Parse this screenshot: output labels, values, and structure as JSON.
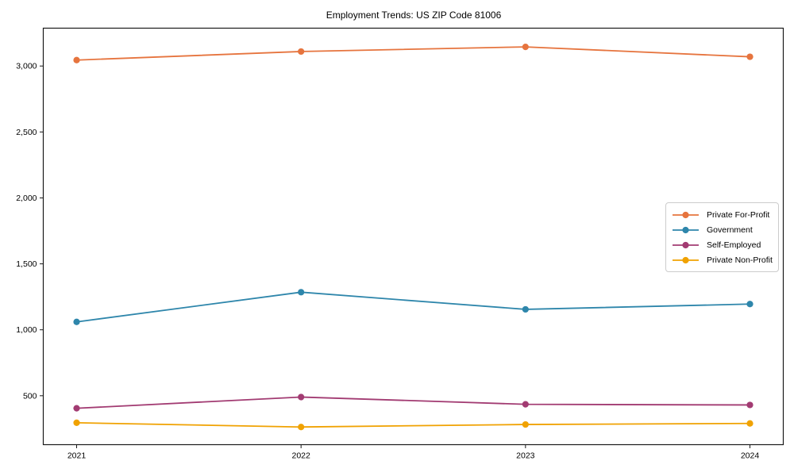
{
  "chart_data": {
    "type": "line",
    "title": "Employment Trends: US ZIP Code 81006",
    "x": [
      2021,
      2022,
      2023,
      2024
    ],
    "x_tick_labels": [
      "2021",
      "2022",
      "2023",
      "2024"
    ],
    "series": [
      {
        "name": "Private For-Profit",
        "color": "#E6743E",
        "values": [
          3045,
          3110,
          3145,
          3070
        ]
      },
      {
        "name": "Government",
        "color": "#2E86AB",
        "values": [
          1060,
          1285,
          1155,
          1195
        ]
      },
      {
        "name": "Self-Employed",
        "color": "#A23B72",
        "values": [
          405,
          490,
          435,
          430
        ]
      },
      {
        "name": "Private Non-Profit",
        "color": "#F0A202",
        "values": [
          295,
          263,
          282,
          290
        ]
      }
    ],
    "y_ticks": [
      500,
      1000,
      1500,
      2000,
      2500,
      3000
    ],
    "y_tick_labels": [
      "500",
      "1,000",
      "1,500",
      "2,000",
      "2,500",
      "3,000"
    ],
    "ylim": [
      129,
      3287
    ],
    "grid": false,
    "legend_position": "center-right",
    "axis_color": "#1a1a1a",
    "background_color": "#ffffff"
  }
}
